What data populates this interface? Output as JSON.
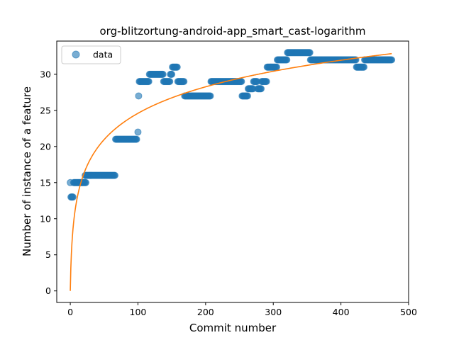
{
  "chart_data": {
    "type": "scatter",
    "title": "org-blitzortung-android-app_smart_cast-logarithm",
    "xlabel": "Commit number",
    "ylabel": "Number of instance of a feature",
    "xlim": [
      -20,
      500
    ],
    "ylim": [
      -1.6,
      34.6
    ],
    "xticks": [
      0,
      100,
      200,
      300,
      400,
      500
    ],
    "yticks": [
      0,
      5,
      10,
      15,
      20,
      25,
      30
    ],
    "grid": false,
    "legend": {
      "position": "top-left",
      "entries": [
        "data"
      ]
    },
    "colors": {
      "data": "#1f77b4",
      "fit": "#ff7f0e"
    },
    "series": [
      {
        "name": "data",
        "kind": "points",
        "segments": [
          [
            0,
            0,
            15
          ],
          [
            1,
            4,
            13
          ],
          [
            5,
            11,
            15
          ],
          [
            12,
            23,
            15
          ],
          [
            22,
            66,
            16
          ],
          [
            67,
            98,
            21
          ],
          [
            100,
            100,
            22
          ],
          [
            101,
            101,
            27
          ],
          [
            102,
            116,
            29
          ],
          [
            117,
            137,
            30
          ],
          [
            138,
            147,
            29
          ],
          [
            148,
            150,
            30
          ],
          [
            151,
            158,
            31
          ],
          [
            159,
            168,
            29
          ],
          [
            169,
            207,
            27
          ],
          [
            208,
            253,
            29
          ],
          [
            254,
            262,
            27
          ],
          [
            263,
            270,
            28
          ],
          [
            271,
            276,
            29
          ],
          [
            277,
            282,
            28
          ],
          [
            283,
            290,
            29
          ],
          [
            291,
            305,
            31
          ],
          [
            306,
            320,
            32
          ],
          [
            321,
            354,
            33
          ],
          [
            355,
            422,
            32
          ],
          [
            423,
            434,
            31
          ],
          [
            435,
            475,
            32
          ]
        ]
      },
      {
        "kind": "fit-line",
        "model": "a*ln(1+x)",
        "a": 5.33,
        "x_range": [
          0,
          475
        ]
      }
    ]
  }
}
